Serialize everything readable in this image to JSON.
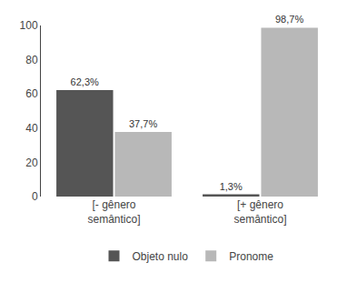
{
  "chart_data": {
    "type": "bar",
    "categories": [
      "[- gênero\nsemântico]",
      "[+ gênero\nsemântico]"
    ],
    "series": [
      {
        "name": "Objeto nulo",
        "color": "#555555",
        "values": [
          62.3,
          1.3
        ],
        "value_labels": [
          "62,3%",
          "1,3%"
        ]
      },
      {
        "name": "Pronome",
        "color": "#b8b8b8",
        "values": [
          37.7,
          98.7
        ],
        "value_labels": [
          "37,7%",
          "98,7%"
        ]
      }
    ],
    "ylim": [
      0,
      100
    ],
    "yticks": [
      0,
      20,
      40,
      60,
      80,
      100
    ],
    "data_labels": true,
    "legend": "bottom",
    "grid": false
  }
}
